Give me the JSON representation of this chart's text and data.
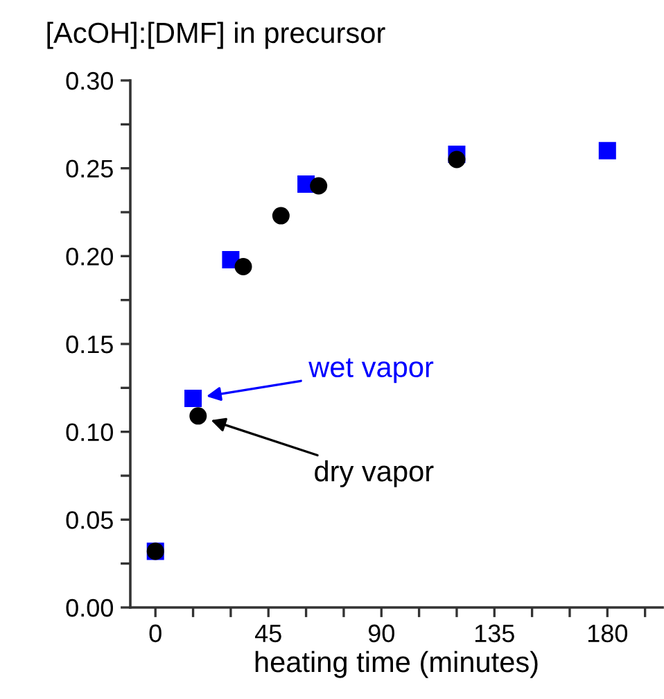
{
  "chart_data": {
    "type": "scatter",
    "ylabel": "[AcOH]:[DMF] in precursor",
    "xlabel": "heating time (minutes)",
    "xlim": [
      -10,
      202
    ],
    "ylim": [
      0,
      0.3
    ],
    "xticks": [
      0,
      {
        "value": 15,
        "label": null
      },
      {
        "value": 30,
        "label": null
      },
      45,
      {
        "value": 60,
        "label": null
      },
      {
        "value": 75,
        "label": null
      },
      90,
      {
        "value": 105,
        "label": null
      },
      {
        "value": 120,
        "label": null
      },
      135,
      {
        "value": 150,
        "label": null
      },
      {
        "value": 165,
        "label": null
      },
      180,
      {
        "value": 195,
        "label": null
      }
    ],
    "yticks": [
      {
        "value": 0,
        "label": "0.00"
      },
      {
        "value": 0.025,
        "label": null
      },
      {
        "value": 0.05,
        "label": "0.05"
      },
      {
        "value": 0.075,
        "label": null
      },
      {
        "value": 0.1,
        "label": "0.10"
      },
      {
        "value": 0.125,
        "label": null
      },
      {
        "value": 0.15,
        "label": "0.15"
      },
      {
        "value": 0.175,
        "label": null
      },
      {
        "value": 0.2,
        "label": "0.20"
      },
      {
        "value": 0.225,
        "label": null
      },
      {
        "value": 0.25,
        "label": "0.25"
      },
      {
        "value": 0.275,
        "label": null
      },
      {
        "value": 0.3,
        "label": "0.30"
      }
    ],
    "grid": false,
    "legend": "center left",
    "series": [
      {
        "name": "wet vapor",
        "color": "#0000ff",
        "marker": "square",
        "x": [
          0,
          15,
          30,
          60,
          120,
          180
        ],
        "values": [
          0.032,
          0.119,
          0.198,
          0.241,
          0.258,
          0.26
        ]
      },
      {
        "name": "dry vapor",
        "color": "#000000",
        "marker": "circle",
        "x": [
          0,
          17,
          35,
          50,
          65,
          120
        ],
        "values": [
          0.032,
          0.109,
          0.194,
          0.223,
          0.24,
          0.255
        ]
      }
    ]
  }
}
